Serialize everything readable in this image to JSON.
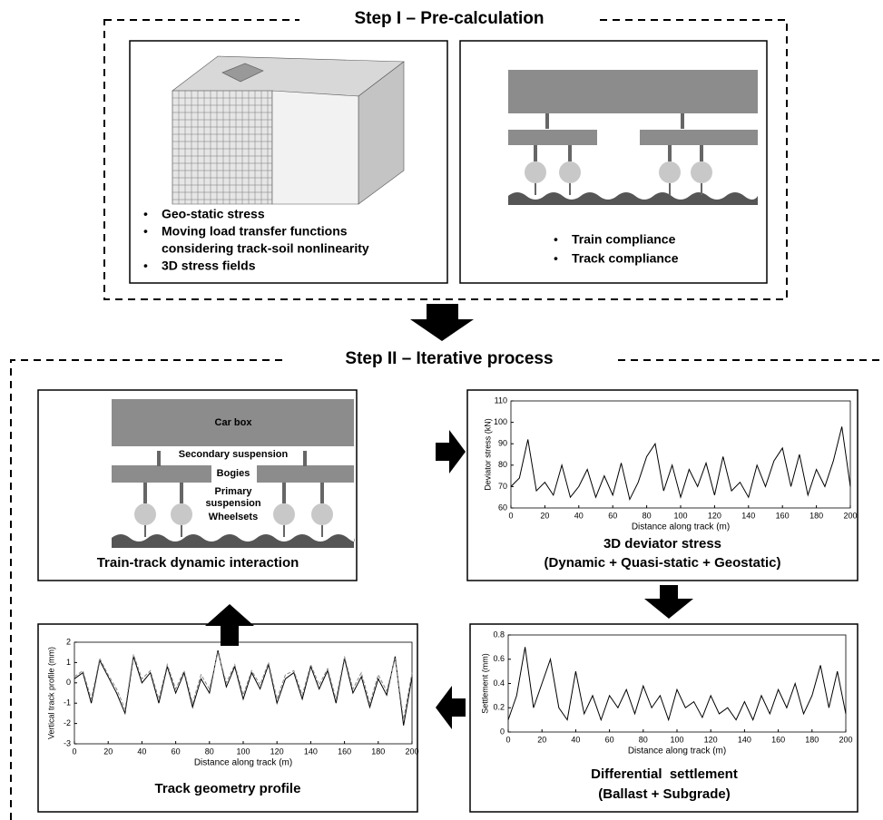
{
  "step1": {
    "title": "Step I – Pre-calculation",
    "left_bullets": [
      [
        "Geo-static stress"
      ],
      [
        "Moving load transfer functions",
        "considering track-soil nonlinearity"
      ],
      [
        "3D stress fields"
      ]
    ],
    "right_bullets": [
      "Train compliance",
      "Track compliance"
    ]
  },
  "step2": {
    "title": "Step II – Iterative process",
    "train_labels": {
      "car_box": "Car box",
      "secondary": "Secondary suspension",
      "bogies": "Bogies",
      "primary": [
        "Primary",
        "suspension"
      ],
      "wheelsets": "Wheelsets"
    },
    "captions": {
      "train": [
        "Train-track dynamic interaction"
      ],
      "deviator": [
        "3D deviator stress",
        "(Dynamic + Quasi-static + Geostatic)"
      ],
      "settlement": [
        "Differential  settlement",
        "(Ballast + Subgrade)"
      ],
      "geometry": [
        "Track geometry profile"
      ]
    }
  },
  "chart_data": [
    {
      "type": "line",
      "xlabel": "Distance along track (m)",
      "ylabel": "Deviator stress (kN)",
      "x": [
        0,
        5,
        10,
        15,
        20,
        25,
        30,
        35,
        40,
        45,
        50,
        55,
        60,
        65,
        70,
        75,
        80,
        85,
        90,
        95,
        100,
        105,
        110,
        115,
        120,
        125,
        130,
        135,
        140,
        145,
        150,
        155,
        160,
        165,
        170,
        175,
        180,
        185,
        190,
        195,
        200
      ],
      "series": [
        {
          "color": "#000000",
          "line_style": "solid",
          "values": [
            70,
            74,
            92,
            68,
            72,
            66,
            80,
            65,
            70,
            78,
            65,
            75,
            66,
            81,
            64,
            72,
            84,
            90,
            68,
            80,
            65,
            78,
            70,
            81,
            66,
            84,
            68,
            72,
            65,
            80,
            70,
            82,
            88,
            70,
            85,
            66,
            78,
            70,
            82,
            98,
            70
          ]
        }
      ],
      "xlim": [
        0,
        200
      ],
      "ylim": [
        60,
        110
      ],
      "xticks": [
        0,
        20,
        40,
        60,
        80,
        100,
        120,
        140,
        160,
        180,
        200
      ],
      "yticks": [
        60,
        70,
        80,
        90,
        100,
        110
      ]
    },
    {
      "type": "line",
      "xlabel": "Distance along track (m)",
      "ylabel": "Settlement (mm)",
      "x": [
        0,
        5,
        10,
        15,
        20,
        25,
        30,
        35,
        40,
        45,
        50,
        55,
        60,
        65,
        70,
        75,
        80,
        85,
        90,
        95,
        100,
        105,
        110,
        115,
        120,
        125,
        130,
        135,
        140,
        145,
        150,
        155,
        160,
        165,
        170,
        175,
        180,
        185,
        190,
        195,
        200
      ],
      "series": [
        {
          "color": "#000000",
          "line_style": "solid",
          "values": [
            0.1,
            0.3,
            0.7,
            0.2,
            0.4,
            0.6,
            0.2,
            0.1,
            0.5,
            0.15,
            0.3,
            0.1,
            0.3,
            0.2,
            0.35,
            0.15,
            0.38,
            0.2,
            0.3,
            0.1,
            0.35,
            0.2,
            0.25,
            0.12,
            0.3,
            0.15,
            0.2,
            0.1,
            0.25,
            0.1,
            0.3,
            0.15,
            0.35,
            0.2,
            0.4,
            0.15,
            0.3,
            0.55,
            0.2,
            0.5,
            0.15
          ]
        }
      ],
      "xlim": [
        0,
        200
      ],
      "ylim": [
        0,
        0.8
      ],
      "xticks": [
        0,
        20,
        40,
        60,
        80,
        100,
        120,
        140,
        160,
        180,
        200
      ],
      "yticks": [
        0,
        0.2,
        0.4,
        0.6,
        0.8
      ]
    },
    {
      "type": "line",
      "xlabel": "Distance along track (m)",
      "ylabel": "Vertical track profile (mm)",
      "x": [
        0,
        5,
        10,
        15,
        20,
        25,
        30,
        35,
        40,
        45,
        50,
        55,
        60,
        65,
        70,
        75,
        80,
        85,
        90,
        95,
        100,
        105,
        110,
        115,
        120,
        125,
        130,
        135,
        140,
        145,
        150,
        155,
        160,
        165,
        170,
        175,
        180,
        185,
        190,
        195,
        200
      ],
      "series": [
        {
          "color": "#000000",
          "line_style": "solid",
          "values": [
            0.2,
            0.5,
            -1,
            1.1,
            0.3,
            -0.5,
            -1.5,
            1.3,
            0,
            0.5,
            -1,
            0.8,
            -0.5,
            0.5,
            -1.2,
            0.2,
            -0.5,
            1.6,
            -0.2,
            0.8,
            -0.8,
            0.5,
            -0.3,
            0.9,
            -1,
            0.2,
            0.5,
            -0.8,
            0.8,
            -0.3,
            0.6,
            -1,
            1.2,
            -0.5,
            0.3,
            -1.2,
            0.2,
            -0.6,
            1.3,
            -2.1,
            0.3
          ]
        },
        {
          "color": "#888888",
          "line_style": "dashed",
          "values": [
            0.3,
            0.6,
            -0.8,
            1.2,
            0.4,
            -0.3,
            -1.3,
            1.4,
            0.2,
            0.6,
            -0.8,
            0.9,
            -0.3,
            0.6,
            -1,
            0.4,
            -0.3,
            1.5,
            0,
            0.9,
            -0.6,
            0.6,
            -0.1,
            1,
            -0.8,
            0.4,
            0.6,
            -0.6,
            0.9,
            -0.1,
            0.7,
            -0.8,
            1.3,
            -0.3,
            0.5,
            -1,
            0.4,
            -0.4,
            1.2,
            -1.8,
            0.5
          ]
        }
      ],
      "xlim": [
        0,
        200
      ],
      "ylim": [
        -3,
        2
      ],
      "xticks": [
        0,
        20,
        40,
        60,
        80,
        100,
        120,
        140,
        160,
        180,
        200
      ],
      "yticks": [
        -3,
        -2,
        -1,
        0,
        1,
        2
      ]
    }
  ]
}
